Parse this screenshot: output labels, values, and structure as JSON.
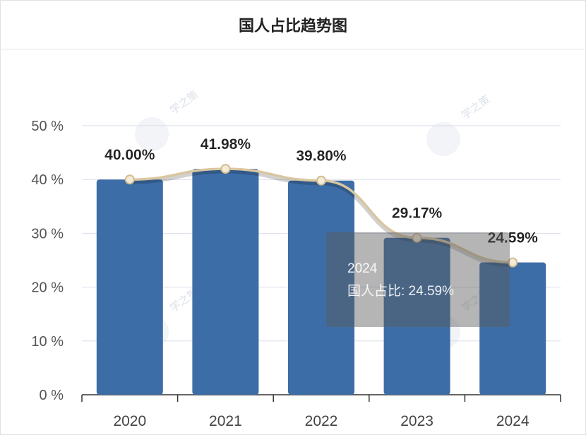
{
  "title": "国人占比趋势图",
  "watermark": "学之策",
  "chart_data": {
    "type": "bar",
    "title": "国人占比趋势图",
    "categories": [
      "2020",
      "2021",
      "2022",
      "2023",
      "2024"
    ],
    "series": [
      {
        "values": [
          40.0,
          41.98,
          39.8,
          29.17,
          24.59
        ],
        "color": "#3d6da6"
      }
    ],
    "line_overlay": {
      "values": [
        40.0,
        41.98,
        39.8,
        29.17,
        24.59
      ],
      "color": "#d9c6a0"
    },
    "data_labels": [
      "40.00%",
      "41.98%",
      "39.80%",
      "29.17%",
      "24.59%"
    ],
    "yticks": [
      "0 %",
      "10 %",
      "20 %",
      "30 %",
      "40 %",
      "50 %"
    ],
    "ylim": [
      0,
      50
    ],
    "grid": true,
    "xlabel": "",
    "ylabel": ""
  },
  "tooltip": {
    "category": "2024",
    "label": "国人占比: 24.59%"
  }
}
